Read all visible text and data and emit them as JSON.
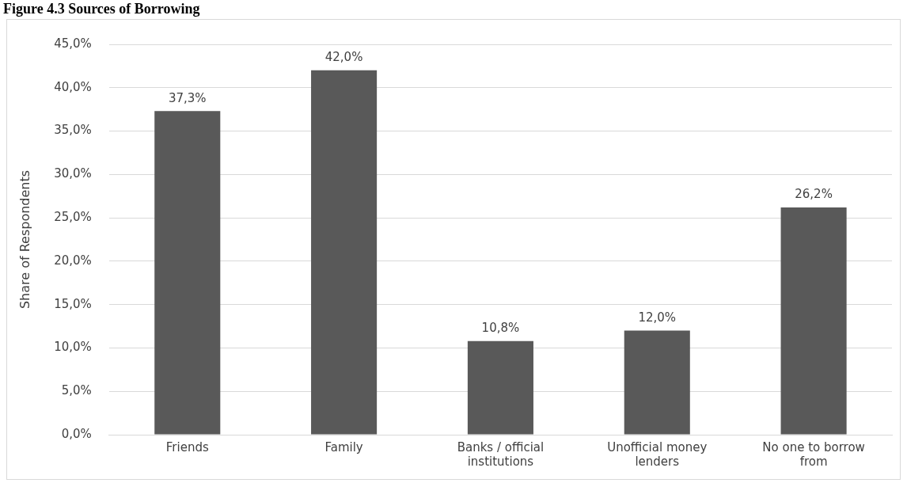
{
  "chart_data": {
    "type": "bar",
    "title": "Figure 4.3 Sources of Borrowing",
    "ylabel": "Share of Respondents",
    "categories": [
      "Friends",
      "Family",
      "Banks / official institutions",
      "Unofficial money lenders",
      "No one to borrow from"
    ],
    "values": [
      37.3,
      42.0,
      10.8,
      12.0,
      26.2
    ],
    "value_labels": [
      "37,3%",
      "42,0%",
      "10,8%",
      "12,0%",
      "26,2%"
    ],
    "color": "#595959",
    "ylim": [
      0,
      45
    ],
    "yticks": [
      {
        "value": 0,
        "label": "0,0%"
      },
      {
        "value": 5,
        "label": "5,0%"
      },
      {
        "value": 10,
        "label": "10,0%"
      },
      {
        "value": 15,
        "label": "15,0%"
      },
      {
        "value": 20,
        "label": "20,0%"
      },
      {
        "value": 25,
        "label": "25,0%"
      },
      {
        "value": 30,
        "label": "30,0%"
      },
      {
        "value": 35,
        "label": "35,0%"
      },
      {
        "value": 40,
        "label": "40,0%"
      },
      {
        "value": 45,
        "label": "45,0%"
      }
    ],
    "grid": "y"
  }
}
